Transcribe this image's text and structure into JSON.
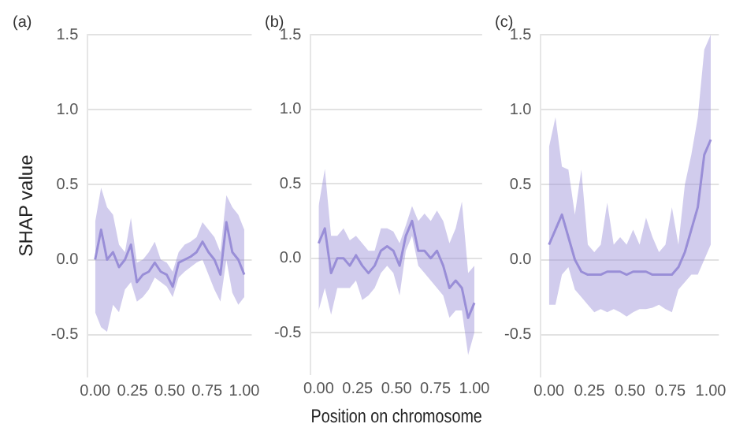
{
  "chart_data": [
    {
      "type": "line",
      "title": "(a)",
      "ylabel": "SHAP value",
      "x": [
        0,
        0.04,
        0.08,
        0.12,
        0.16,
        0.2,
        0.24,
        0.28,
        0.32,
        0.36,
        0.4,
        0.44,
        0.48,
        0.52,
        0.56,
        0.6,
        0.64,
        0.68,
        0.72,
        0.76,
        0.8,
        0.84,
        0.88,
        0.92,
        0.96,
        1
      ],
      "series": [
        {
          "color": "#9a8fd8",
          "values": [
            0,
            0.2,
            0,
            0.05,
            -0.05,
            0,
            0.1,
            -0.15,
            -0.1,
            -0.08,
            -0.02,
            -0.08,
            -0.1,
            -0.18,
            -0.02,
            0,
            0.02,
            0.05,
            0.12,
            0.05,
            0,
            -0.1,
            0.25,
            0.05,
            0,
            -0.1
          ],
          "lower": [
            -0.35,
            -0.45,
            -0.48,
            -0.3,
            -0.35,
            -0.2,
            -0.15,
            -0.28,
            -0.25,
            -0.2,
            -0.12,
            -0.15,
            -0.18,
            -0.25,
            -0.12,
            -0.08,
            -0.05,
            -0.02,
            0,
            -0.1,
            -0.2,
            -0.28,
            0,
            -0.22,
            -0.3,
            -0.25
          ],
          "upper": [
            0.25,
            0.48,
            0.35,
            0.3,
            0.1,
            0.05,
            0.28,
            -0.02,
            0,
            0.05,
            0.12,
            0,
            -0.02,
            -0.08,
            0.05,
            0.1,
            0.12,
            0.15,
            0.25,
            0.2,
            0.15,
            0.05,
            0.43,
            0.35,
            0.3,
            0.2
          ]
        }
      ],
      "xlim": [
        -0.05,
        1.05
      ],
      "xticks": [
        {
          "value": 0,
          "label": "0.00"
        },
        {
          "value": 0.25,
          "label": "0.25"
        },
        {
          "value": 0.5,
          "label": "0.50"
        },
        {
          "value": 0.75,
          "label": "0.75"
        },
        {
          "value": 1,
          "label": "1.00"
        }
      ],
      "ylim": [
        -0.78,
        1.5
      ],
      "yticks": [
        {
          "value": -0.5,
          "label": "-0.5"
        },
        {
          "value": 0,
          "label": "0.0"
        },
        {
          "value": 0.5,
          "label": "0.5"
        },
        {
          "value": 1,
          "label": "1.0"
        },
        {
          "value": 1.5,
          "label": "1.5"
        }
      ],
      "grid": "y",
      "legend": false,
      "marker": "none",
      "line_style": "solid"
    },
    {
      "type": "line",
      "title": "(b)",
      "xlabel": "Position on chromosome",
      "x": [
        0,
        0.04,
        0.08,
        0.12,
        0.16,
        0.2,
        0.24,
        0.28,
        0.32,
        0.36,
        0.4,
        0.44,
        0.48,
        0.52,
        0.56,
        0.6,
        0.64,
        0.68,
        0.72,
        0.76,
        0.8,
        0.84,
        0.88,
        0.92,
        0.96,
        1
      ],
      "series": [
        {
          "color": "#9a8fd8",
          "values": [
            0.1,
            0.2,
            -0.1,
            0,
            0,
            -0.05,
            0.02,
            -0.05,
            -0.1,
            -0.05,
            0.05,
            0.08,
            0.05,
            -0.05,
            0.15,
            0.25,
            0.05,
            0.05,
            0,
            0.05,
            -0.05,
            -0.2,
            -0.15,
            -0.2,
            -0.4,
            -0.3
          ],
          "lower": [
            -0.35,
            -0.2,
            -0.38,
            -0.2,
            -0.2,
            -0.2,
            -0.15,
            -0.28,
            -0.25,
            -0.2,
            -0.1,
            -0.05,
            -0.1,
            -0.25,
            0.05,
            0.15,
            -0.05,
            -0.1,
            -0.15,
            -0.2,
            -0.25,
            -0.4,
            -0.35,
            -0.35,
            -0.65,
            -0.5
          ],
          "upper": [
            0.35,
            0.6,
            0.15,
            0.15,
            0.2,
            0.12,
            0.15,
            0.1,
            0.05,
            0.05,
            0.2,
            0.2,
            0.18,
            0.1,
            0.22,
            0.35,
            0.25,
            0.3,
            0.25,
            0.32,
            0.25,
            0.1,
            0.2,
            0.38,
            -0.1,
            -0.05
          ]
        }
      ],
      "xlim": [
        -0.05,
        1.05
      ],
      "xticks": [
        {
          "value": 0,
          "label": "0.00"
        },
        {
          "value": 0.25,
          "label": "0.25"
        },
        {
          "value": 0.5,
          "label": "0.50"
        },
        {
          "value": 0.75,
          "label": "0.75"
        },
        {
          "value": 1,
          "label": "1.00"
        }
      ],
      "ylim": [
        -0.78,
        1.5
      ],
      "yticks": [
        {
          "value": -0.5,
          "label": "-0.5"
        },
        {
          "value": 0,
          "label": "0.0"
        },
        {
          "value": 0.5,
          "label": "0.5"
        },
        {
          "value": 1,
          "label": "1.0"
        },
        {
          "value": 1.5,
          "label": "1.5"
        }
      ],
      "grid": "y",
      "legend": false,
      "marker": "none",
      "line_style": "solid"
    },
    {
      "type": "line",
      "title": "(c)",
      "x": [
        0,
        0.04,
        0.08,
        0.12,
        0.16,
        0.2,
        0.24,
        0.28,
        0.32,
        0.36,
        0.4,
        0.44,
        0.48,
        0.52,
        0.56,
        0.6,
        0.64,
        0.68,
        0.72,
        0.76,
        0.8,
        0.84,
        0.88,
        0.92,
        0.96,
        1
      ],
      "series": [
        {
          "color": "#9a8fd8",
          "values": [
            0.1,
            0.2,
            0.3,
            0.15,
            0,
            -0.08,
            -0.1,
            -0.1,
            -0.1,
            -0.08,
            -0.08,
            -0.08,
            -0.1,
            -0.08,
            -0.08,
            -0.08,
            -0.1,
            -0.1,
            -0.1,
            -0.1,
            -0.05,
            0.05,
            0.2,
            0.35,
            0.7,
            0.8
          ],
          "lower": [
            -0.3,
            -0.3,
            -0.1,
            -0.05,
            -0.2,
            -0.25,
            -0.3,
            -0.35,
            -0.33,
            -0.35,
            -0.33,
            -0.35,
            -0.38,
            -0.35,
            -0.33,
            -0.33,
            -0.32,
            -0.3,
            -0.33,
            -0.35,
            -0.2,
            -0.15,
            -0.1,
            -0.1,
            0,
            0.1
          ],
          "upper": [
            0.75,
            0.95,
            0.62,
            0.6,
            0.3,
            0.6,
            0.1,
            0.05,
            0.1,
            0.38,
            0.1,
            0.15,
            0.1,
            0.2,
            0.1,
            0.28,
            0.15,
            0.05,
            0.1,
            0.35,
            0.1,
            0.5,
            0.7,
            0.95,
            1.4,
            1.5
          ]
        }
      ],
      "xlim": [
        -0.05,
        1.05
      ],
      "xticks": [
        {
          "value": 0,
          "label": "0.00"
        },
        {
          "value": 0.25,
          "label": "0.25"
        },
        {
          "value": 0.5,
          "label": "0.50"
        },
        {
          "value": 0.75,
          "label": "0.75"
        },
        {
          "value": 1,
          "label": "1.00"
        }
      ],
      "ylim": [
        -0.78,
        1.5
      ],
      "yticks": [
        {
          "value": -0.5,
          "label": "-0.5"
        },
        {
          "value": 0,
          "label": "0.0"
        },
        {
          "value": 0.5,
          "label": "0.5"
        },
        {
          "value": 1,
          "label": "1.0"
        },
        {
          "value": 1.5,
          "label": "1.5"
        }
      ],
      "grid": "y",
      "legend": false,
      "marker": "none",
      "line_style": "solid"
    }
  ]
}
